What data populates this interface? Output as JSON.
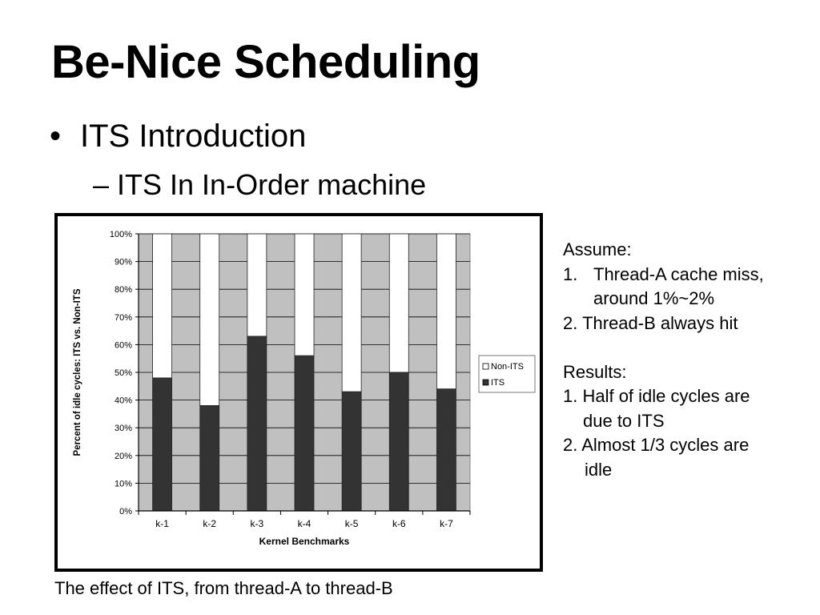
{
  "slide": {
    "title": "Be-Nice Scheduling",
    "bullet": "•",
    "bullet_text": "ITS Introduction",
    "sub_bullet": "– ITS In In-Order machine",
    "caption": "The effect of ITS, from thread-A to thread-B"
  },
  "notes": {
    "assume_heading": "Assume:",
    "assume_1_num": "1.",
    "assume_1_line1": "Thread-A cache miss,",
    "assume_1_line2": "around 1%~2%",
    "assume_2": "2. Thread-B always hit",
    "results_heading": "Results:",
    "result_1_line1": "1. Half of idle cycles are",
    "result_1_line2": "due to ITS",
    "result_2_line1": "2. Almost 1/3 cycles are",
    "result_2_line2": "idle"
  },
  "chart_data": {
    "type": "bar",
    "stacked": true,
    "categories": [
      "k-1",
      "k-2",
      "k-3",
      "k-4",
      "k-5",
      "k-6",
      "k-7"
    ],
    "series": [
      {
        "name": "ITS",
        "values": [
          48,
          38,
          63,
          56,
          43,
          50,
          44
        ],
        "color": "#333333"
      },
      {
        "name": "Non-ITS",
        "values": [
          52,
          62,
          37,
          44,
          57,
          50,
          56
        ],
        "color": "#ffffff"
      }
    ],
    "ylim": [
      0,
      100
    ],
    "yticks": [
      "0%",
      "10%",
      "20%",
      "30%",
      "40%",
      "50%",
      "60%",
      "70%",
      "80%",
      "90%",
      "100%"
    ],
    "xlabel": "Kernel Benchmarks",
    "ylabel": "Percent of idle cycles: ITS vs. Non-ITS",
    "legend": [
      "Non-ITS",
      "ITS"
    ],
    "legend_position": "right",
    "plot_background": "#c0c0c0",
    "gridlines": true
  }
}
